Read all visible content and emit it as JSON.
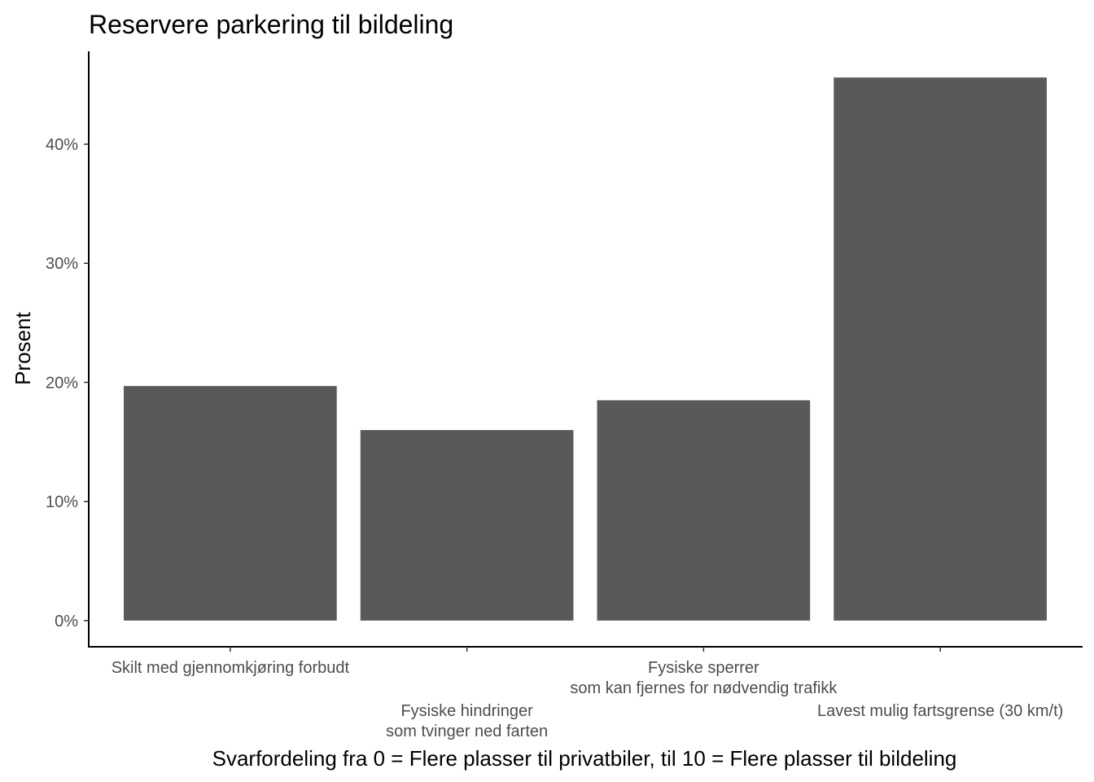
{
  "chart_data": {
    "type": "bar",
    "title": "Reservere parkering til bildeling",
    "xlabel": "Svarfordeling fra 0 = Flere plasser til privatbiler, til 10 = Flere plasser til bildeling",
    "ylabel": "Prosent",
    "ylim": [
      -2.2,
      47.8
    ],
    "yticks": [
      0,
      10,
      20,
      30,
      40
    ],
    "ytick_labels": [
      "0%",
      "10%",
      "20%",
      "30%",
      "40%"
    ],
    "categories": [
      "Skilt med gjennomkjøring forbudt",
      "Fysiske hindringer\nsom tvinger ned farten",
      "Fysiske sperrer\nsom kan fjernes for nødvendig trafikk",
      "Lavest mulig fartsgrense (30 km/t)"
    ],
    "values": [
      19.7,
      16.0,
      18.5,
      45.6
    ],
    "bar_color": "#595959",
    "grid": false,
    "legend": "none"
  }
}
